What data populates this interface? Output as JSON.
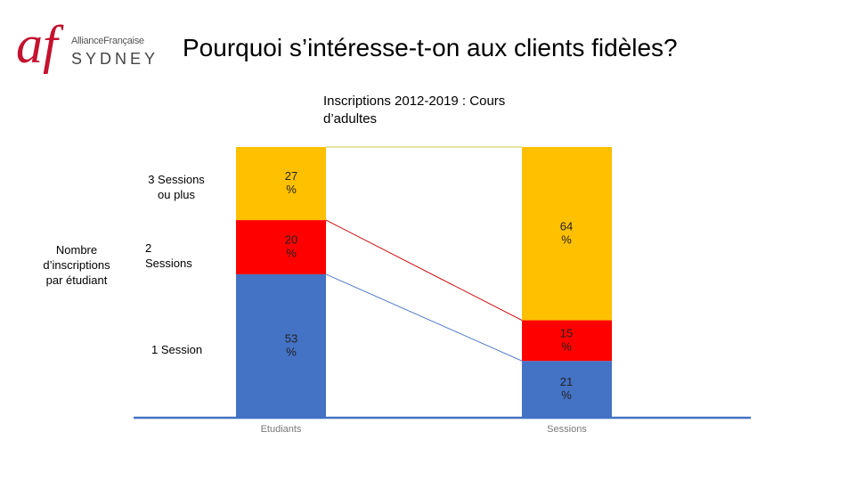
{
  "logo": {
    "mark": "af",
    "top": "AllianceFrançaise",
    "bottom": "SYDNEY"
  },
  "title": "Pourquoi s’intéresse-t-on aux clients fidèles?",
  "subtitle": "Inscriptions 2012-2019 : Cours d’adultes",
  "y_axis_title": "Nombre d’inscriptions par étudiant",
  "chart_data": {
    "type": "bar",
    "stacked": true,
    "categories": [
      "Etudiants",
      "Sessions"
    ],
    "series": [
      {
        "name": "1 Session",
        "values": [
          53,
          21
        ],
        "labels": [
          "53 %",
          "21 %"
        ],
        "color": "#4472c4"
      },
      {
        "name": "2 Sessions",
        "values": [
          20,
          15
        ],
        "labels": [
          "20 %",
          "15 %"
        ],
        "color": "#ff0000"
      },
      {
        "name": "3 Sessions ou plus",
        "values": [
          27,
          64
        ],
        "labels": [
          "27 %",
          "64 %"
        ],
        "color": "#ffc000"
      }
    ],
    "ylim": [
      0,
      100
    ],
    "grid": false
  }
}
